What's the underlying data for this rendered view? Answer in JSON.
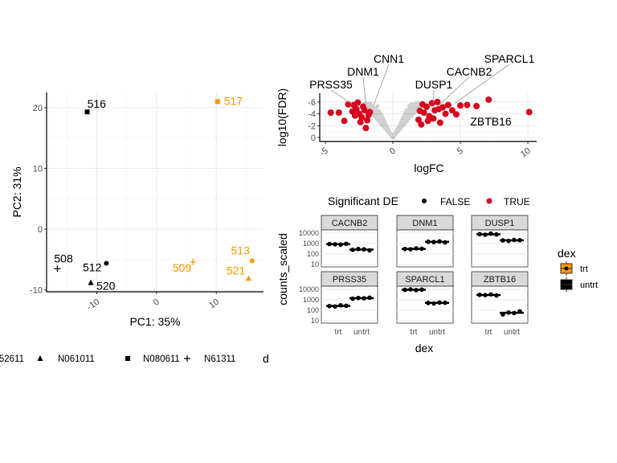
{
  "colors": {
    "trt": "#FF9800",
    "untrt": "#000000",
    "sig_true": "#D7001E",
    "sig_false": "#000000"
  },
  "chart_data": [
    {
      "type": "scatter",
      "xlabel": "PC1: 35%",
      "ylabel": "PC2: 31%",
      "xlim": [
        -18.4,
        17.9
      ],
      "ylim": [
        -10.3,
        22.5
      ],
      "xticks": [
        -10,
        0,
        10
      ],
      "yticks": [
        -10,
        0,
        10,
        20
      ],
      "grid": true,
      "points": [
        {
          "label": "516",
          "x": -11.6,
          "y": 19.3,
          "shape": "square",
          "group": "untrt"
        },
        {
          "label": "517",
          "x": 10.2,
          "y": 21.0,
          "shape": "square",
          "group": "trt"
        },
        {
          "label": "508",
          "x": -16.6,
          "y": -6.5,
          "shape": "plus",
          "group": "untrt"
        },
        {
          "label": "512",
          "x": -8.4,
          "y": -5.6,
          "shape": "circle",
          "group": "untrt"
        },
        {
          "label": "520",
          "x": -11.0,
          "y": -8.8,
          "shape": "triangle",
          "group": "untrt"
        },
        {
          "label": "509",
          "x": 6.1,
          "y": -5.4,
          "shape": "plus",
          "group": "trt"
        },
        {
          "label": "513",
          "x": 16.0,
          "y": -5.2,
          "shape": "circle",
          "group": "trt"
        },
        {
          "label": "521",
          "x": 15.4,
          "y": -8.1,
          "shape": "triangle",
          "group": "trt"
        }
      ],
      "legend": {
        "placement": "bottom",
        "items": [
          {
            "label": "52611",
            "shape": "circle"
          },
          {
            "label": "N061011",
            "shape": "triangle"
          },
          {
            "label": "N080611",
            "shape": "square"
          },
          {
            "label": "N61311",
            "shape": "plus"
          }
        ],
        "next_title": "d"
      }
    },
    {
      "type": "scatter",
      "xlabel": "logFC",
      "ylabel": "log10(FDR)",
      "xlim": [
        -5.5,
        10.6
      ],
      "ylim": [
        0.3,
        -7.5
      ],
      "xticks": [
        -5,
        0,
        5,
        10
      ],
      "yticks": [
        -6,
        -4,
        -2,
        0
      ],
      "grid": true,
      "legend": {
        "title": "Significant DE",
        "placement": "bottom",
        "items": [
          "FALSE",
          "TRUE"
        ]
      },
      "significant_points": [
        [
          -4.6,
          -4.2
        ],
        [
          -4.0,
          -4.2
        ],
        [
          -3.6,
          -2.8
        ],
        [
          -3.3,
          -5.6
        ],
        [
          -2.9,
          -5.5
        ],
        [
          -2.7,
          -4.8
        ],
        [
          -2.5,
          -4.0
        ],
        [
          -2.3,
          -3.4
        ],
        [
          -2.1,
          -4.6
        ],
        [
          -1.9,
          -2.9
        ],
        [
          -2.6,
          -5.9
        ],
        [
          -2.2,
          -5.2
        ],
        [
          -1.8,
          -3.8
        ],
        [
          -2.0,
          -1.6
        ],
        [
          -2.8,
          -3.7
        ],
        [
          -2.4,
          -2.6
        ],
        [
          -3.0,
          -4.4
        ],
        [
          -1.7,
          -4.3
        ],
        [
          1.9,
          -3.0
        ],
        [
          2.1,
          -2.2
        ],
        [
          2.3,
          -4.2
        ],
        [
          2.5,
          -5.2
        ],
        [
          2.7,
          -3.6
        ],
        [
          2.9,
          -5.8
        ],
        [
          3.1,
          -4.6
        ],
        [
          3.3,
          -6.0
        ],
        [
          3.5,
          -2.5
        ],
        [
          3.7,
          -5.1
        ],
        [
          3.9,
          -4.0
        ],
        [
          4.1,
          -5.5
        ],
        [
          4.4,
          -4.6
        ],
        [
          4.7,
          -3.9
        ],
        [
          5.0,
          -5.4
        ],
        [
          5.5,
          -5.5
        ],
        [
          6.2,
          -5.3
        ],
        [
          2.6,
          -2.8
        ],
        [
          3.0,
          -3.2
        ],
        [
          2.2,
          -5.6
        ],
        [
          2.0,
          -4.5
        ],
        [
          3.4,
          -4.8
        ],
        [
          7.1,
          -6.4
        ],
        [
          10.1,
          -4.3
        ]
      ],
      "gene_labels": [
        {
          "label": "PRSS35",
          "x": -3.0,
          "y": -5.6
        },
        {
          "label": "DNM1",
          "x": -2.0,
          "y": -5.6
        },
        {
          "label": "CNN1",
          "x": -1.4,
          "y": -5.6
        },
        {
          "label": "DUSP1",
          "x": 3.0,
          "y": -5.8
        },
        {
          "label": "CACNB2",
          "x": 3.4,
          "y": -5.4
        },
        {
          "label": "SPARCL1",
          "x": 4.6,
          "y": -5.8
        },
        {
          "label": "ZBTB16",
          "x": 7.3,
          "y": -2.9
        }
      ]
    },
    {
      "type": "box",
      "xlabel": "dex",
      "ylabel": "counts_scaled",
      "y_scale": "log10",
      "yticks": [
        "10",
        "100",
        "1000",
        "10000"
      ],
      "categories": [
        "trt",
        "untrt"
      ],
      "legend": {
        "title": "dex",
        "items": [
          "trt",
          "untrt"
        ],
        "placement": "right"
      },
      "facets": [
        {
          "gene": "CACNB2",
          "trt": [
            900,
            850,
            800,
            950
          ],
          "untrt": [
            250,
            300,
            280,
            220
          ]
        },
        {
          "gene": "DNM1",
          "trt": [
            300,
            280,
            350,
            320
          ],
          "untrt": [
            1500,
            1400,
            1600,
            1300
          ]
        },
        {
          "gene": "DUSP1",
          "trt": [
            8000,
            7000,
            9000,
            7500
          ],
          "untrt": [
            2000,
            1800,
            2200,
            2100
          ]
        },
        {
          "gene": "PRSS35",
          "trt": [
            250,
            230,
            300,
            270
          ],
          "untrt": [
            1300,
            1500,
            1400,
            1600
          ]
        },
        {
          "gene": "SPARCL1",
          "trt": [
            9000,
            10000,
            8500,
            9500
          ],
          "untrt": [
            500,
            450,
            550,
            520
          ]
        },
        {
          "gene": "ZBTB16",
          "trt": [
            3000,
            2800,
            3300,
            2600
          ],
          "untrt": [
            40,
            60,
            55,
            80
          ]
        }
      ]
    }
  ]
}
